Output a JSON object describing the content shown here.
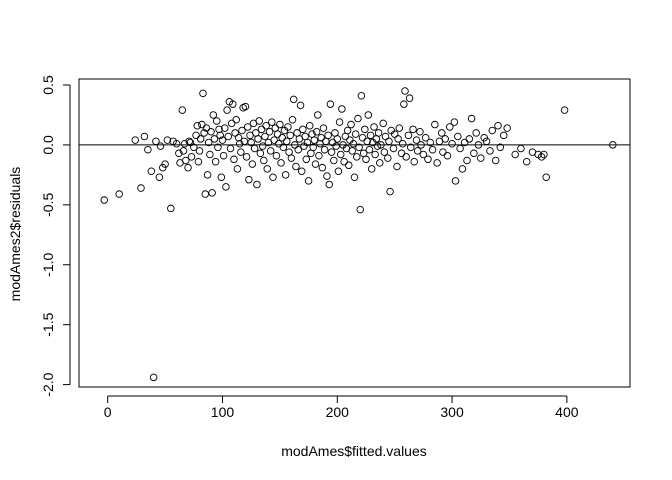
{
  "chart_data": {
    "type": "scatter",
    "title": "",
    "xlabel": "modAmes$fitted.values",
    "ylabel": "modAmes2$residuals",
    "xlim": [
      -25,
      455
    ],
    "ylim": [
      -2.02,
      0.55
    ],
    "x_ticks": [
      0,
      100,
      200,
      300,
      400
    ],
    "x_tick_labels": [
      "0",
      "100",
      "200",
      "300",
      "400"
    ],
    "y_ticks": [
      -2.0,
      -1.5,
      -1.0,
      -0.5,
      0.0,
      0.5
    ],
    "y_tick_labels": [
      "-2.0",
      "-1.5",
      "-1.0",
      "-0.5",
      "0.0",
      "0.5"
    ],
    "reference_line": {
      "y": 0
    },
    "grid": false,
    "legend": "none",
    "point_style": "open-circle",
    "color": "#000000",
    "points": [
      [
        -3,
        -0.46
      ],
      [
        10,
        -0.41
      ],
      [
        24,
        0.04
      ],
      [
        29,
        -0.36
      ],
      [
        32,
        0.07
      ],
      [
        35,
        -0.04
      ],
      [
        38,
        -0.22
      ],
      [
        40,
        -1.94
      ],
      [
        42,
        0.03
      ],
      [
        45,
        -0.27
      ],
      [
        46,
        -0.01
      ],
      [
        48,
        -0.19
      ],
      [
        50,
        -0.16
      ],
      [
        52,
        0.04
      ],
      [
        55,
        -0.53
      ],
      [
        57,
        0.03
      ],
      [
        60,
        0.01
      ],
      [
        62,
        -0.07
      ],
      [
        63,
        -0.15
      ],
      [
        65,
        0.29
      ],
      [
        66,
        -0.05
      ],
      [
        67,
        0.01
      ],
      [
        68,
        -0.13
      ],
      [
        70,
        -0.19
      ],
      [
        71,
        0.03
      ],
      [
        72,
        0.02
      ],
      [
        73,
        -0.1
      ],
      [
        75,
        -0.02
      ],
      [
        77,
        0.08
      ],
      [
        78,
        0.16
      ],
      [
        79,
        -0.14
      ],
      [
        80,
        -0.05
      ],
      [
        81,
        0.05
      ],
      [
        82,
        0.17
      ],
      [
        83,
        0.43
      ],
      [
        84,
        0.1
      ],
      [
        85,
        -0.41
      ],
      [
        86,
        0.14
      ],
      [
        87,
        -0.25
      ],
      [
        88,
        0.02
      ],
      [
        89,
        -0.08
      ],
      [
        90,
        0.11
      ],
      [
        91,
        -0.4
      ],
      [
        92,
        0.25
      ],
      [
        93,
        0.05
      ],
      [
        94,
        -0.14
      ],
      [
        95,
        0.2
      ],
      [
        96,
        -0.02
      ],
      [
        97,
        0.13
      ],
      [
        98,
        0.08
      ],
      [
        99,
        -0.27
      ],
      [
        100,
        0.04
      ],
      [
        101,
        -0.09
      ],
      [
        102,
        0.14
      ],
      [
        103,
        -0.35
      ],
      [
        104,
        0.29
      ],
      [
        105,
        0.07
      ],
      [
        106,
        0.36
      ],
      [
        107,
        -0.03
      ],
      [
        108,
        0.18
      ],
      [
        109,
        0.34
      ],
      [
        110,
        -0.12
      ],
      [
        111,
        0.1
      ],
      [
        112,
        0.21
      ],
      [
        113,
        -0.2
      ],
      [
        114,
        0.06
      ],
      [
        115,
        0.01
      ],
      [
        116,
        -0.06
      ],
      [
        117,
        0.12
      ],
      [
        118,
        0.31
      ],
      [
        119,
        0.03
      ],
      [
        120,
        0.32
      ],
      [
        121,
        -0.1
      ],
      [
        122,
        0.15
      ],
      [
        123,
        -0.29
      ],
      [
        124,
        0.08
      ],
      [
        125,
        0.02
      ],
      [
        126,
        -0.16
      ],
      [
        127,
        0.18
      ],
      [
        128,
        -0.03
      ],
      [
        129,
        0.1
      ],
      [
        130,
        -0.33
      ],
      [
        131,
        0.05
      ],
      [
        132,
        0.2
      ],
      [
        133,
        -0.07
      ],
      [
        134,
        0.13
      ],
      [
        135,
        -0.01
      ],
      [
        136,
        -0.13
      ],
      [
        137,
        0.07
      ],
      [
        138,
        0.16
      ],
      [
        139,
        -0.2
      ],
      [
        140,
        0.02
      ],
      [
        141,
        0.11
      ],
      [
        142,
        -0.05
      ],
      [
        143,
        0.19
      ],
      [
        144,
        -0.27
      ],
      [
        145,
        0.04
      ],
      [
        146,
        0.14
      ],
      [
        147,
        -0.09
      ],
      [
        148,
        0.09
      ],
      [
        149,
        0.01
      ],
      [
        150,
        0.17
      ],
      [
        151,
        -0.15
      ],
      [
        152,
        0.06
      ],
      [
        153,
        -0.02
      ],
      [
        154,
        0.12
      ],
      [
        155,
        -0.25
      ],
      [
        156,
        0.03
      ],
      [
        157,
        0.15
      ],
      [
        158,
        -0.06
      ],
      [
        159,
        0.08
      ],
      [
        160,
        -0.11
      ],
      [
        161,
        0.21
      ],
      [
        162,
        0.38
      ],
      [
        163,
        0.0
      ],
      [
        164,
        -0.18
      ],
      [
        165,
        0.1
      ],
      [
        166,
        -0.04
      ],
      [
        167,
        0.05
      ],
      [
        168,
        0.33
      ],
      [
        169,
        -0.22
      ],
      [
        170,
        0.13
      ],
      [
        171,
        -0.01
      ],
      [
        172,
        0.07
      ],
      [
        173,
        -0.12
      ],
      [
        174,
        0.02
      ],
      [
        175,
        -0.3
      ],
      [
        176,
        0.16
      ],
      [
        177,
        -0.07
      ],
      [
        178,
        0.09
      ],
      [
        179,
        -0.02
      ],
      [
        180,
        0.04
      ],
      [
        181,
        -0.16
      ],
      [
        182,
        0.11
      ],
      [
        183,
        0.25
      ],
      [
        184,
        -0.09
      ],
      [
        185,
        0.01
      ],
      [
        186,
        0.06
      ],
      [
        187,
        -0.19
      ],
      [
        188,
        0.14
      ],
      [
        189,
        -0.04
      ],
      [
        190,
        0.03
      ],
      [
        191,
        -0.26
      ],
      [
        192,
        0.08
      ],
      [
        193,
        -0.33
      ],
      [
        194,
        0.34
      ],
      [
        195,
        -0.06
      ],
      [
        196,
        0.02
      ],
      [
        197,
        -0.13
      ],
      [
        198,
        0.1
      ],
      [
        199,
        -0.01
      ],
      [
        200,
        0.05
      ],
      [
        201,
        -0.22
      ],
      [
        202,
        0.19
      ],
      [
        203,
        -0.08
      ],
      [
        204,
        0.3
      ],
      [
        205,
        0.0
      ],
      [
        206,
        -0.14
      ],
      [
        207,
        0.07
      ],
      [
        208,
        -0.03
      ],
      [
        209,
        0.12
      ],
      [
        210,
        -0.17
      ],
      [
        211,
        0.04
      ],
      [
        212,
        0.17
      ],
      [
        213,
        -0.05
      ],
      [
        214,
        0.01
      ],
      [
        215,
        -0.27
      ],
      [
        216,
        0.09
      ],
      [
        217,
        -0.1
      ],
      [
        218,
        0.22
      ],
      [
        219,
        -0.02
      ],
      [
        220,
        -0.54
      ],
      [
        221,
        0.41
      ],
      [
        222,
        0.06
      ],
      [
        223,
        -0.07
      ],
      [
        224,
        0.13
      ],
      [
        225,
        -0.12
      ],
      [
        226,
        0.03
      ],
      [
        227,
        0.25
      ],
      [
        228,
        -0.04
      ],
      [
        229,
        0.08
      ],
      [
        230,
        -0.2
      ],
      [
        231,
        0.02
      ],
      [
        232,
        0.15
      ],
      [
        233,
        -0.08
      ],
      [
        234,
        0.05
      ],
      [
        235,
        -0.01
      ],
      [
        236,
        0.1
      ],
      [
        237,
        -0.15
      ],
      [
        238,
        0.0
      ],
      [
        240,
        0.18
      ],
      [
        241,
        -0.06
      ],
      [
        242,
        0.07
      ],
      [
        244,
        -0.11
      ],
      [
        245,
        0.03
      ],
      [
        246,
        -0.39
      ],
      [
        247,
        0.12
      ],
      [
        249,
        -0.03
      ],
      [
        250,
        0.09
      ],
      [
        252,
        -0.18
      ],
      [
        253,
        0.05
      ],
      [
        254,
        0.14
      ],
      [
        256,
        -0.07
      ],
      [
        257,
        0.01
      ],
      [
        258,
        0.34
      ],
      [
        259,
        0.45
      ],
      [
        260,
        -0.1
      ],
      [
        262,
        0.08
      ],
      [
        263,
        0.39
      ],
      [
        264,
        -0.02
      ],
      [
        266,
        0.13
      ],
      [
        267,
        -0.14
      ],
      [
        269,
        0.04
      ],
      [
        270,
        -0.05
      ],
      [
        272,
        0.11
      ],
      [
        273,
        0.0
      ],
      [
        275,
        -0.08
      ],
      [
        277,
        0.06
      ],
      [
        279,
        -0.12
      ],
      [
        281,
        0.02
      ],
      [
        283,
        -0.04
      ],
      [
        285,
        0.17
      ],
      [
        287,
        -0.15
      ],
      [
        289,
        0.03
      ],
      [
        291,
        0.1
      ],
      [
        292,
        -0.06
      ],
      [
        294,
        0.05
      ],
      [
        296,
        -0.09
      ],
      [
        298,
        0.15
      ],
      [
        300,
        0.01
      ],
      [
        302,
        0.19
      ],
      [
        303,
        -0.3
      ],
      [
        305,
        0.07
      ],
      [
        307,
        -0.03
      ],
      [
        309,
        -0.2
      ],
      [
        311,
        0.02
      ],
      [
        313,
        -0.13
      ],
      [
        315,
        0.05
      ],
      [
        317,
        0.22
      ],
      [
        319,
        -0.07
      ],
      [
        321,
        0.1
      ],
      [
        323,
        0.0
      ],
      [
        325,
        -0.11
      ],
      [
        328,
        0.06
      ],
      [
        330,
        0.03
      ],
      [
        333,
        -0.05
      ],
      [
        335,
        0.12
      ],
      [
        338,
        -0.13
      ],
      [
        340,
        0.16
      ],
      [
        342,
        -0.02
      ],
      [
        345,
        0.08
      ],
      [
        348,
        0.14
      ],
      [
        355,
        -0.08
      ],
      [
        360,
        -0.03
      ],
      [
        365,
        -0.14
      ],
      [
        370,
        -0.06
      ],
      [
        375,
        -0.08
      ],
      [
        378,
        -0.1
      ],
      [
        380,
        -0.08
      ],
      [
        382,
        -0.27
      ],
      [
        398,
        0.29
      ],
      [
        440,
        0.0
      ]
    ]
  }
}
